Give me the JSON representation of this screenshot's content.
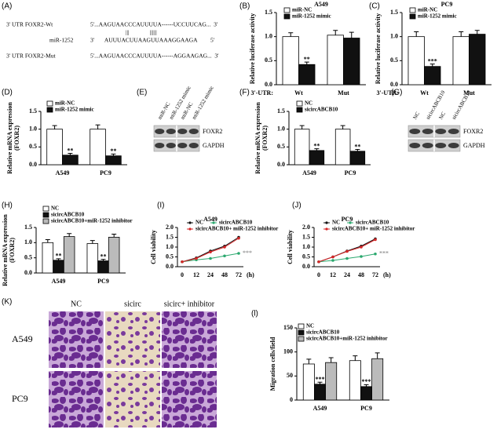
{
  "panel_A": {
    "label": "(A)",
    "rows": [
      {
        "name": "3' UTR FOXR2-Wt",
        "sequence": "5'...AAGUAACCCAUUUUA------UCCUUCAG...  3'"
      },
      {
        "name": "miR-1252",
        "sequence": "3'       AUUUACUUAAGUUAAAGGAAGA         5'"
      },
      {
        "name": "3' UTR FOXR2-Mut",
        "sequence": "5'...AAGUAACCCAUUUUA------AGGAAGAG...  3'"
      }
    ],
    "pairing": "|||              ||||||"
  },
  "panel_E": {
    "label": "(E)",
    "lanes": [
      "miR-NC",
      "miR-1252 mimic",
      "miR-NC",
      "miR-1252 mimic"
    ],
    "bands": [
      "FOXR2",
      "GAPDH"
    ]
  },
  "panel_G": {
    "label": "(G)",
    "lanes": [
      "NC",
      "sicircABCB10",
      "NC",
      "sicircABCB10"
    ],
    "bands": [
      "FOXR2",
      "GAPDH"
    ]
  },
  "panel_K": {
    "label": "(K)",
    "columns": [
      "NC",
      "sicirc",
      "sicirc+ inhibitor"
    ],
    "rows": [
      "A549",
      "PC9"
    ]
  },
  "chart_data": [
    {
      "type": "bar",
      "label": "(B)",
      "title": "A549",
      "ylabel": [
        "Relative luciferase activity"
      ],
      "xlabel": "3'-UTR:",
      "categories": [
        "Wt",
        "Mut"
      ],
      "series": [
        {
          "name": "miR-NC",
          "color": "#ffffff",
          "values": [
            1.0,
            1.03
          ],
          "errors": [
            0.08,
            0.1
          ],
          "significance": [
            null,
            null
          ]
        },
        {
          "name": "miR-1252 mimic",
          "color": "#111111",
          "values": [
            0.42,
            0.97
          ],
          "errors": [
            0.05,
            0.12
          ],
          "significance": [
            "**",
            null
          ]
        }
      ],
      "ylim": [
        0,
        1.5
      ],
      "yticks": [
        {
          "value": 0,
          "label": "0.0"
        },
        0.5,
        {
          "value": 1,
          "label": "1.0"
        },
        1.5
      ]
    },
    {
      "type": "bar",
      "label": "(C)",
      "title": "PC9",
      "ylabel": [
        "Relative luciferase activity"
      ],
      "xlabel": "3'-UTR:",
      "categories": [
        "Wt",
        "Mut"
      ],
      "series": [
        {
          "name": "miR-NC",
          "color": "#ffffff",
          "values": [
            1.0,
            1.0
          ],
          "errors": [
            0.1,
            0.1
          ],
          "significance": [
            null,
            null
          ]
        },
        {
          "name": "miR-1252 mimic",
          "color": "#111111",
          "values": [
            0.38,
            1.05
          ],
          "errors": [
            0.05,
            0.08
          ],
          "significance": [
            "***",
            null
          ]
        }
      ],
      "ylim": [
        0,
        1.5
      ],
      "yticks": [
        {
          "value": 0,
          "label": "0.0"
        },
        0.5,
        {
          "value": 1,
          "label": "1.0"
        },
        1.5
      ]
    },
    {
      "type": "bar",
      "label": "(D)",
      "ylabel": [
        "Relative mRNA expression",
        "(FOXR2)"
      ],
      "categories": [
        "A549",
        "PC9"
      ],
      "series": [
        {
          "name": "miR-NC",
          "color": "#ffffff",
          "values": [
            1.0,
            1.0
          ],
          "errors": [
            0.1,
            0.12
          ],
          "significance": [
            null,
            null
          ]
        },
        {
          "name": "miR-1252 mimic",
          "color": "#111111",
          "values": [
            0.27,
            0.25
          ],
          "errors": [
            0.05,
            0.05
          ],
          "significance": [
            "**",
            "**"
          ]
        }
      ],
      "ylim": [
        0,
        1.5
      ],
      "yticks": [
        {
          "value": 0,
          "label": "0.0"
        },
        0.5,
        {
          "value": 1,
          "label": "1.0"
        },
        1.5
      ]
    },
    {
      "type": "bar",
      "label": "(F)",
      "ylabel": [
        "Relative mRNA expression",
        "(FOXR2)"
      ],
      "categories": [
        "A549",
        "PC9"
      ],
      "series": [
        {
          "name": "NC",
          "color": "#ffffff",
          "values": [
            1.0,
            1.0
          ],
          "errors": [
            0.1,
            0.1
          ],
          "significance": [
            null,
            null
          ]
        },
        {
          "name": "sicircABCB10",
          "color": "#111111",
          "values": [
            0.4,
            0.38
          ],
          "errors": [
            0.05,
            0.05
          ],
          "significance": [
            "**",
            "**"
          ]
        }
      ],
      "ylim": [
        0,
        1.5
      ],
      "yticks": [
        {
          "value": 0,
          "label": "0.0"
        },
        0.5,
        {
          "value": 1,
          "label": "1.0"
        },
        1.5
      ]
    },
    {
      "type": "bar",
      "label": "(H)",
      "ylabel": [
        "Relative mRNA expression",
        "(FOXR2)"
      ],
      "categories": [
        "A549",
        "PC9"
      ],
      "series": [
        {
          "name": "NC",
          "color": "#ffffff",
          "values": [
            1.0,
            0.97
          ],
          "errors": [
            0.1,
            0.1
          ],
          "significance": [
            null,
            null
          ]
        },
        {
          "name": "sicircABCB10",
          "color": "#111111",
          "values": [
            0.42,
            0.4
          ],
          "errors": [
            0.05,
            0.05
          ],
          "significance": [
            "**",
            "**"
          ]
        },
        {
          "name": "sicircABCB10+miR-1252 inhibitor",
          "color": "#bbbbbb",
          "values": [
            1.2,
            1.18
          ],
          "errors": [
            0.1,
            0.1
          ],
          "significance": [
            null,
            null
          ]
        }
      ],
      "ylim": [
        0,
        1.5
      ],
      "yticks": [
        {
          "value": 0,
          "label": "0.0"
        },
        0.5,
        {
          "value": 1,
          "label": "1.0"
        },
        1.5
      ]
    },
    {
      "type": "line",
      "label": "(I)",
      "title": "A549",
      "ylabel": [
        "Cell viability"
      ],
      "xlabel": "(h)",
      "categories": [
        "0",
        "12",
        "24",
        "48",
        "72"
      ],
      "series": [
        {
          "name": "NC",
          "color": "#111111",
          "values": [
            0.25,
            0.45,
            0.8,
            1.05,
            1.5
          ],
          "significance": [
            null,
            null,
            null,
            null,
            null
          ]
        },
        {
          "name": "sicircABCB10",
          "color": "#2aa86e",
          "values": [
            0.25,
            0.35,
            0.42,
            0.55,
            0.68
          ],
          "significance": [
            null,
            null,
            null,
            null,
            "***"
          ]
        },
        {
          "name": "sicircABCB10+ miR-1252 inhibitor",
          "color": "#d62728",
          "values": [
            0.25,
            0.42,
            0.75,
            1.0,
            1.45
          ],
          "significance": [
            null,
            null,
            null,
            null,
            null
          ]
        }
      ],
      "ylim": [
        0,
        2
      ],
      "yticks": [
        {
          "value": 0,
          "label": "0.0"
        },
        0.5,
        {
          "value": 1,
          "label": "1.0"
        },
        1.5,
        {
          "value": 2,
          "label": "2.0"
        }
      ]
    },
    {
      "type": "line",
      "label": "(J)",
      "title": "PC9",
      "ylabel": [
        "Cell viability"
      ],
      "xlabel": "(h)",
      "categories": [
        "0",
        "12",
        "24",
        "48",
        "72"
      ],
      "series": [
        {
          "name": "NC",
          "color": "#111111",
          "values": [
            0.25,
            0.5,
            0.8,
            1.05,
            1.42
          ],
          "significance": [
            null,
            null,
            null,
            null,
            null
          ]
        },
        {
          "name": "sicircABCB10",
          "color": "#2aa86e",
          "values": [
            0.25,
            0.32,
            0.42,
            0.52,
            0.65
          ],
          "significance": [
            null,
            null,
            null,
            null,
            "***"
          ]
        },
        {
          "name": "sicircABCB10+ miR-1252 inhibitor",
          "color": "#d62728",
          "values": [
            0.25,
            0.5,
            0.78,
            1.0,
            1.38
          ],
          "significance": [
            null,
            null,
            null,
            null,
            null
          ]
        }
      ],
      "ylim": [
        0,
        2
      ],
      "yticks": [
        {
          "value": 0,
          "label": "0.0"
        },
        0.5,
        {
          "value": 1,
          "label": "1.0"
        },
        1.5,
        {
          "value": 2,
          "label": "2.0"
        }
      ]
    },
    {
      "type": "bar",
      "label": "(l)",
      "ylabel": [
        "Migration cells/field"
      ],
      "categories": [
        "A549",
        "PC9"
      ],
      "series": [
        {
          "name": "NC",
          "color": "#ffffff",
          "values": [
            75,
            82
          ],
          "errors": [
            10,
            10
          ],
          "significance": [
            null,
            null
          ]
        },
        {
          "name": "sicircABCB10",
          "color": "#111111",
          "values": [
            33,
            28
          ],
          "errors": [
            4,
            4
          ],
          "significance": [
            "***",
            "***"
          ]
        },
        {
          "name": "sicircABCB10+miR-1252 inhibitor",
          "color": "#bbbbbb",
          "values": [
            78,
            86
          ],
          "errors": [
            10,
            12
          ],
          "significance": [
            null,
            null
          ]
        }
      ],
      "ylim": [
        0,
        150
      ],
      "yticks": [
        0,
        50,
        100,
        150
      ]
    }
  ]
}
